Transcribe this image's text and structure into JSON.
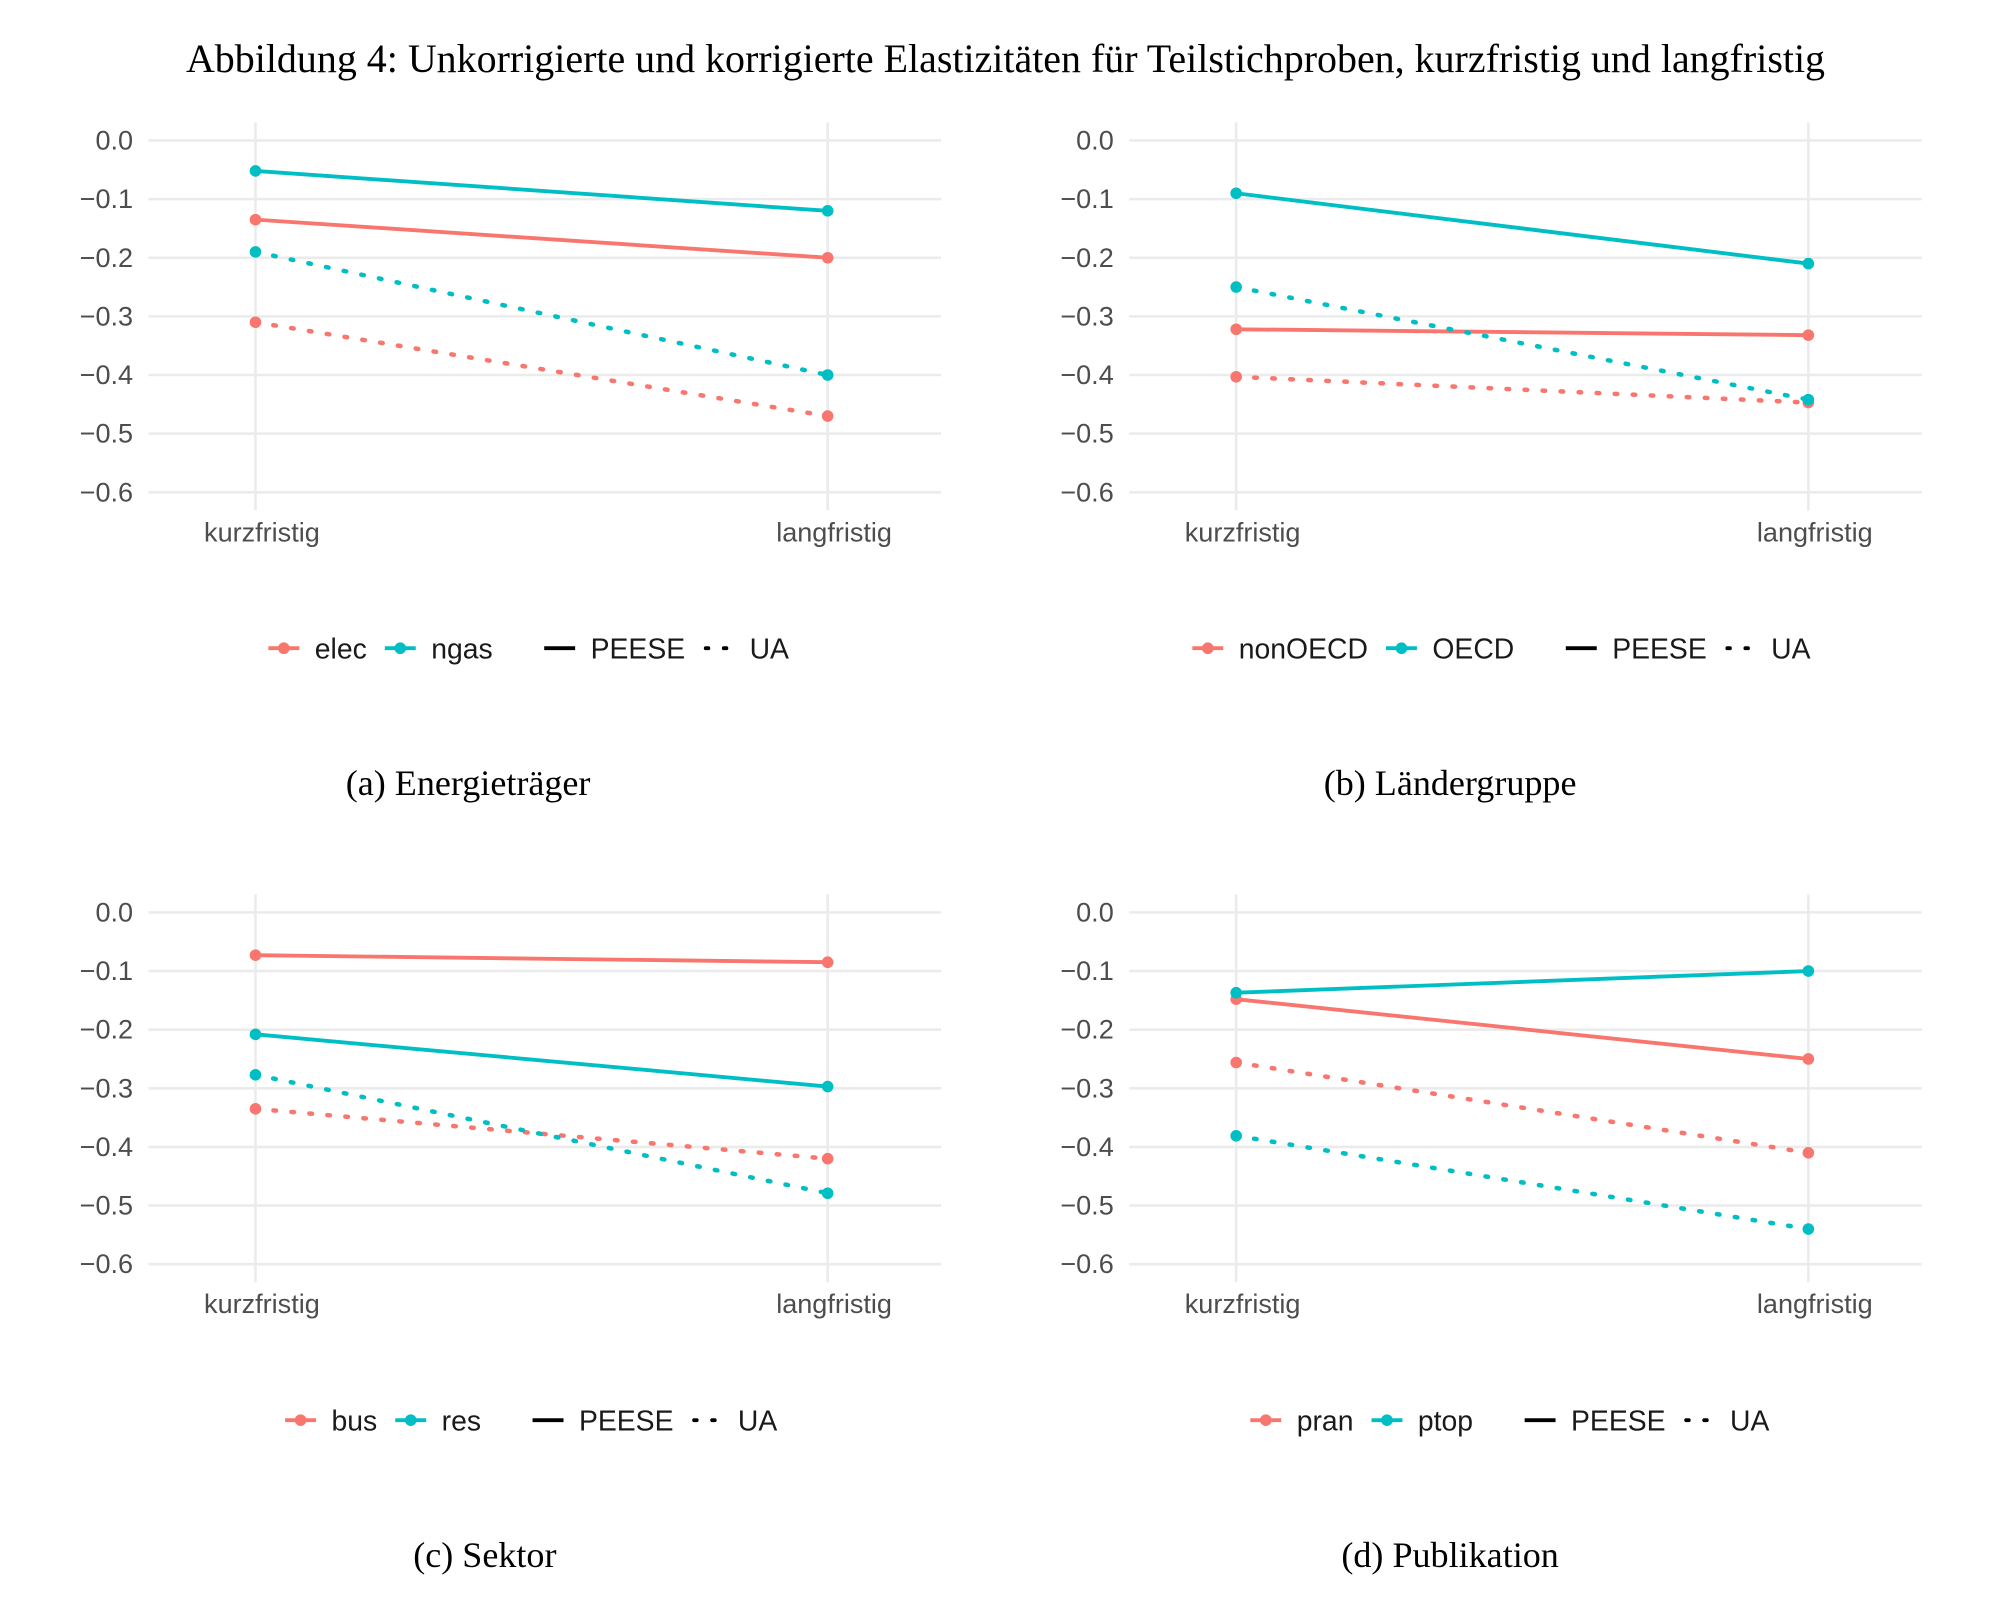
{
  "title": "Abbildung 4: Unkorrigierte und korrigierte Elastizitäten für Teilstichproben, kurzfristig und langfristig",
  "colors": {
    "red": "#F8766D",
    "teal": "#00BFC4"
  },
  "chart_data": [
    {
      "type": "line",
      "caption": "(a) Energieträger",
      "categories": [
        "kurzfristig",
        "langfristig"
      ],
      "yticks": [
        "0.0",
        "−0.1",
        "−0.2",
        "−0.3",
        "−0.4",
        "−0.5",
        "−0.6"
      ],
      "ylim": [
        -0.6,
        0.0
      ],
      "groups": [
        "elec",
        "ngas"
      ],
      "linetypes": [
        "PEESE",
        "UA"
      ],
      "legend_position": "bottom",
      "series": [
        {
          "name": "elec",
          "type": "PEESE",
          "color": "red",
          "values": [
            -0.135,
            -0.2
          ]
        },
        {
          "name": "ngas",
          "type": "PEESE",
          "color": "teal",
          "values": [
            -0.052,
            -0.12
          ]
        },
        {
          "name": "elec",
          "type": "UA",
          "color": "red",
          "values": [
            -0.31,
            -0.47
          ]
        },
        {
          "name": "ngas",
          "type": "UA",
          "color": "teal",
          "values": [
            -0.19,
            -0.4
          ]
        }
      ]
    },
    {
      "type": "line",
      "caption": "(b) Ländergruppe",
      "categories": [
        "kurzfristig",
        "langfristig"
      ],
      "yticks": [
        "0.0",
        "−0.1",
        "−0.2",
        "−0.3",
        "−0.4",
        "−0.5",
        "−0.6"
      ],
      "ylim": [
        -0.6,
        0.0
      ],
      "groups": [
        "nonOECD",
        "OECD"
      ],
      "linetypes": [
        "PEESE",
        "UA"
      ],
      "legend_position": "bottom",
      "series": [
        {
          "name": "nonOECD",
          "type": "PEESE",
          "color": "red",
          "values": [
            -0.322,
            -0.332
          ]
        },
        {
          "name": "OECD",
          "type": "PEESE",
          "color": "teal",
          "values": [
            -0.09,
            -0.21
          ]
        },
        {
          "name": "nonOECD",
          "type": "UA",
          "color": "red",
          "values": [
            -0.403,
            -0.447
          ]
        },
        {
          "name": "OECD",
          "type": "UA",
          "color": "teal",
          "values": [
            -0.25,
            -0.442
          ]
        }
      ]
    },
    {
      "type": "line",
      "caption": "(c) Sektor",
      "categories": [
        "kurzfristig",
        "langfristig"
      ],
      "yticks": [
        "0.0",
        "−0.1",
        "−0.2",
        "−0.3",
        "−0.4",
        "−0.5",
        "−0.6"
      ],
      "ylim": [
        -0.6,
        0.0
      ],
      "groups": [
        "bus",
        "res"
      ],
      "linetypes": [
        "PEESE",
        "UA"
      ],
      "legend_position": "bottom",
      "series": [
        {
          "name": "bus",
          "type": "PEESE",
          "color": "red",
          "values": [
            -0.073,
            -0.085
          ]
        },
        {
          "name": "res",
          "type": "PEESE",
          "color": "teal",
          "values": [
            -0.208,
            -0.297
          ]
        },
        {
          "name": "bus",
          "type": "UA",
          "color": "red",
          "values": [
            -0.335,
            -0.42
          ]
        },
        {
          "name": "res",
          "type": "UA",
          "color": "teal",
          "values": [
            -0.277,
            -0.479
          ]
        }
      ]
    },
    {
      "type": "line",
      "caption": "(d) Publikation",
      "categories": [
        "kurzfristig",
        "langfristig"
      ],
      "yticks": [
        "0.0",
        "−0.1",
        "−0.2",
        "−0.3",
        "−0.4",
        "−0.5",
        "−0.6"
      ],
      "ylim": [
        -0.6,
        0.0
      ],
      "groups": [
        "pran",
        "ptop"
      ],
      "linetypes": [
        "PEESE",
        "UA"
      ],
      "legend_position": "bottom",
      "series": [
        {
          "name": "pran",
          "type": "PEESE",
          "color": "red",
          "values": [
            -0.148,
            -0.25
          ]
        },
        {
          "name": "ptop",
          "type": "PEESE",
          "color": "teal",
          "values": [
            -0.137,
            -0.1
          ]
        },
        {
          "name": "pran",
          "type": "UA",
          "color": "red",
          "values": [
            -0.256,
            -0.41
          ]
        },
        {
          "name": "ptop",
          "type": "UA",
          "color": "teal",
          "values": [
            -0.381,
            -0.54
          ]
        }
      ]
    }
  ]
}
